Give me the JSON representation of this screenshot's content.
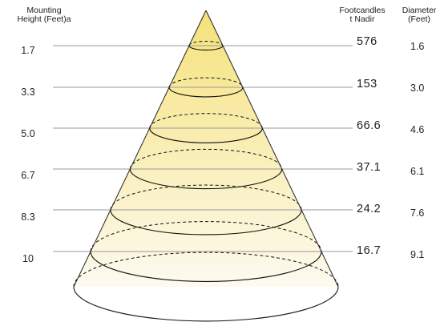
{
  "headers": {
    "mounting_height": [
      "Mounting",
      "Height (Feet)a"
    ],
    "footcandles": [
      "Footcandles",
      "t Nadir"
    ],
    "diameter": [
      "Diameter",
      "(Feet)"
    ]
  },
  "rows": [
    {
      "height": "1.7",
      "footcandles": "576",
      "diameter": "1.6"
    },
    {
      "height": "3.3",
      "footcandles": "153",
      "diameter": "3.0"
    },
    {
      "height": "5.0",
      "footcandles": "66.6",
      "diameter": "4.6"
    },
    {
      "height": "6.7",
      "footcandles": "37.1",
      "diameter": "6.1"
    },
    {
      "height": "8.3",
      "footcandles": "24.2",
      "diameter": "7.6"
    },
    {
      "height": "10",
      "footcandles": "16.7",
      "diameter": "9.1"
    }
  ],
  "colors": {
    "beam_top": "#f5e27a",
    "beam_bottom": "#fdfaf0",
    "lines": "#999999",
    "outline": "#111111"
  }
}
